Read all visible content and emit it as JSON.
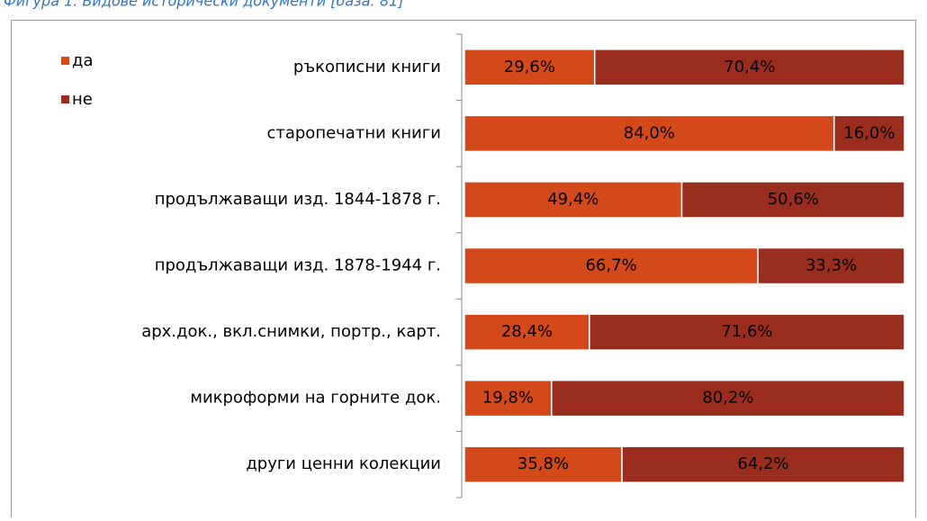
{
  "chart_data": {
    "type": "stacked_bar_horizontal",
    "caption": "Фигура 1. Видове исторически документи [база: 81]",
    "categories": [
      "ръкописни книги",
      "старопечатни книги",
      "продължаващи изд. 1844-1878 г.",
      "продължаващи изд. 1878-1944 г.",
      "арх.док., вкл.снимки, портр., карт.",
      "микроформи на горните док.",
      "други ценни колекции"
    ],
    "series": [
      {
        "name": "да",
        "color": "#d4491a",
        "values": [
          29.6,
          84.0,
          49.4,
          66.7,
          28.4,
          19.8,
          35.8
        ],
        "value_labels": [
          "29,6%",
          "84,0%",
          "49,4%",
          "66,7%",
          "28,4%",
          "19,8%",
          "35,8%"
        ]
      },
      {
        "name": "не",
        "color": "#9b2d1f",
        "values": [
          70.4,
          16.0,
          50.6,
          33.3,
          71.6,
          80.2,
          64.2
        ],
        "value_labels": [
          "70,4%",
          "16,0%",
          "50,6%",
          "33,3%",
          "71,6%",
          "80,2%",
          "64,2%"
        ]
      }
    ],
    "xlim": [
      0,
      100
    ],
    "legend": "top-left"
  }
}
